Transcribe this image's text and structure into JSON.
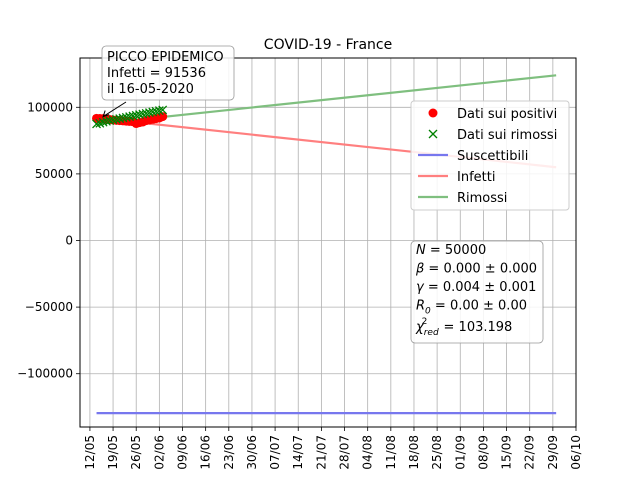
{
  "chart_data": {
    "type": "line",
    "title": "COVID-19 - France",
    "xlabel": "",
    "ylabel": "",
    "grid": true,
    "x_tick_labels": [
      "12/05",
      "19/05",
      "26/05",
      "02/06",
      "09/06",
      "16/06",
      "23/06",
      "30/06",
      "07/07",
      "14/07",
      "21/07",
      "28/07",
      "04/08",
      "11/08",
      "18/08",
      "25/08",
      "01/09",
      "08/09",
      "15/09",
      "22/09",
      "29/09",
      "06/10"
    ],
    "x_range_days": [
      -3,
      147
    ],
    "y_ticks": [
      -100000,
      -50000,
      0,
      50000,
      100000
    ],
    "y_tick_labels": [
      "−100000",
      "−50000",
      "0",
      "50000",
      "100000"
    ],
    "ylim": [
      -140000,
      137000
    ],
    "legend_position": "right",
    "series": [
      {
        "name": "Dati sui positivi",
        "kind": "scatter",
        "marker": "circle",
        "color": "#ff0000",
        "x_dates": [
          "14/05",
          "15/05",
          "16/05",
          "17/05",
          "18/05",
          "19/05",
          "20/05",
          "21/05",
          "22/05",
          "23/05",
          "24/05",
          "25/05",
          "26/05",
          "27/05",
          "28/05",
          "29/05",
          "30/05",
          "31/05",
          "01/06",
          "02/06",
          "03/06"
        ],
        "values": [
          91700,
          91600,
          91536,
          91200,
          90800,
          90500,
          90200,
          90000,
          89800,
          89600,
          89400,
          89200,
          87800,
          88500,
          89000,
          90000,
          90500,
          91000,
          91500,
          92000,
          93000
        ]
      },
      {
        "name": "Dati sui rimossi",
        "kind": "scatter",
        "marker": "x",
        "color": "#008000",
        "x_dates": [
          "14/05",
          "15/05",
          "16/05",
          "17/05",
          "18/05",
          "19/05",
          "20/05",
          "21/05",
          "22/05",
          "23/05",
          "24/05",
          "25/05",
          "26/05",
          "27/05",
          "28/05",
          "29/05",
          "30/05",
          "31/05",
          "01/06",
          "02/06",
          "03/06"
        ],
        "values": [
          87500,
          88000,
          88800,
          89500,
          90000,
          90500,
          91000,
          91500,
          92000,
          92500,
          93000,
          93500,
          94000,
          94500,
          95000,
          95500,
          96000,
          96500,
          97000,
          97500,
          98000
        ]
      },
      {
        "name": "Suscettibili",
        "kind": "line",
        "color": "#7777ee",
        "x_dates": [
          "14/05",
          "30/09"
        ],
        "values": [
          -129600,
          -129600
        ]
      },
      {
        "name": "Infetti",
        "kind": "line",
        "color": "#ff7f7f",
        "x_dates": [
          "14/05",
          "30/09"
        ],
        "values": [
          92000,
          55000
        ]
      },
      {
        "name": "Rimossi",
        "kind": "line",
        "color": "#7fbf7f",
        "x_dates": [
          "14/05",
          "30/09"
        ],
        "values": [
          87500,
          124000
        ]
      }
    ],
    "annotations": {
      "peak": {
        "lines": [
          "PICCO EPIDEMICO",
          "Infetti = 91536",
          "il 16-05-2020"
        ],
        "target_x_date": "16/05",
        "target_value": 91536
      },
      "params": [
        {
          "prefix": "N",
          "sub": "",
          "rest": " = 50000"
        },
        {
          "prefix": "β",
          "sub": "",
          "rest": " = 0.000 ± 0.000"
        },
        {
          "prefix": "γ",
          "sub": "",
          "rest": " = 0.004 ± 0.001"
        },
        {
          "prefix": "R",
          "sub": "0",
          "rest": " = 0.00 ± 0.00"
        },
        {
          "prefix": "χ",
          "sub": "red",
          "sup": "2",
          "rest": " = 103.198"
        }
      ]
    }
  }
}
